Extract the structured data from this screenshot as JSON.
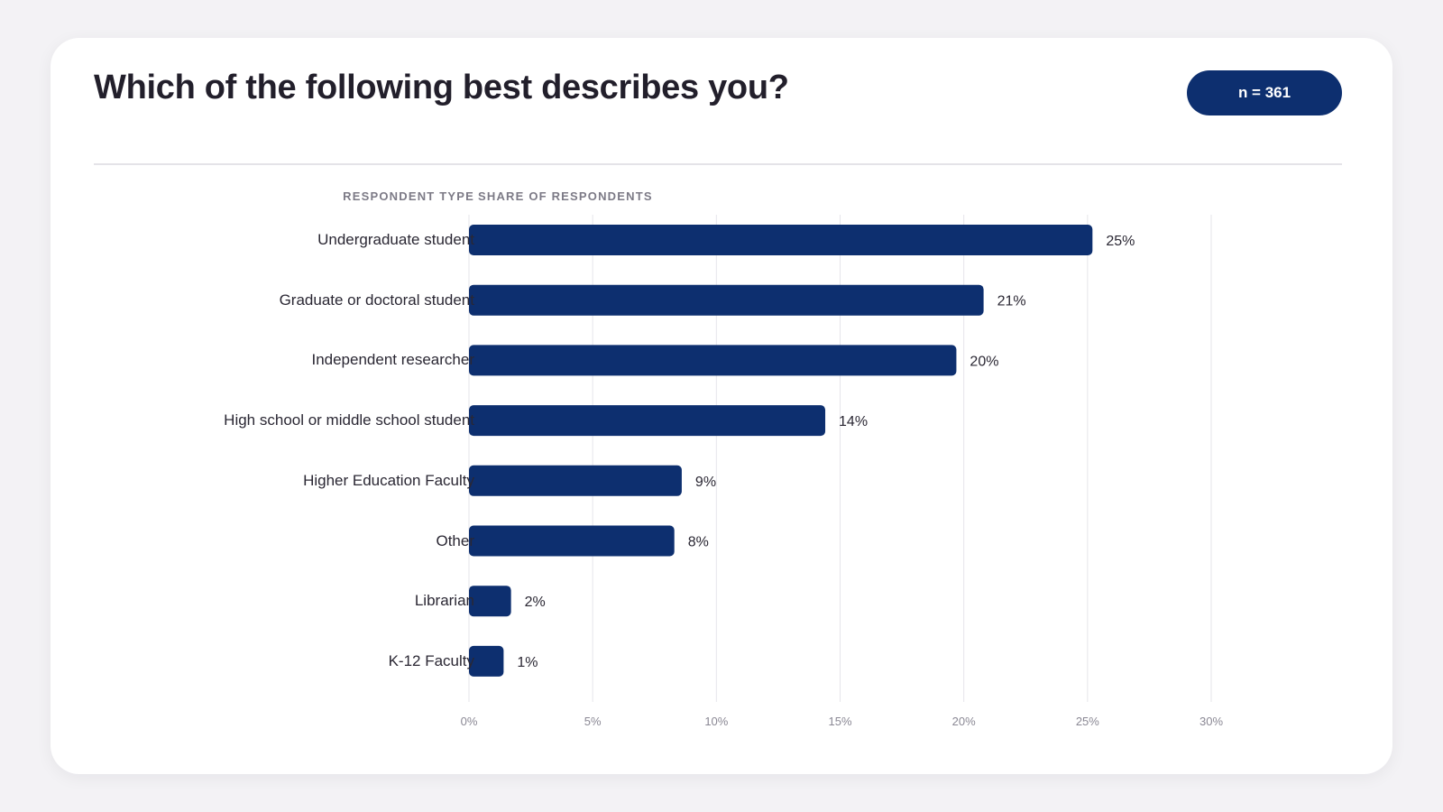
{
  "header": {
    "title": "Which of the following best describes you?",
    "sample_badge": "n = 361"
  },
  "columns": {
    "category_header": "RESPONDENT TYPE",
    "value_header": "SHARE OF RESPONDENTS"
  },
  "colors": {
    "bar": "#0d2f6f",
    "badge": "#0d2f6f",
    "grid": "#e6e5ea",
    "tick_text": "#8a8894",
    "value_text": "#2a2733"
  },
  "chart_data": {
    "type": "bar",
    "orientation": "horizontal",
    "title": "Which of the following best describes you?",
    "xlabel": "SHARE OF RESPONDENTS",
    "ylabel": "RESPONDENT TYPE",
    "categories": [
      "Undergraduate student",
      "Graduate or doctoral student",
      "Independent researcher",
      "High school or middle school student",
      "Higher Education Faculty",
      "Other",
      "Librarian",
      "K-12 Faculty"
    ],
    "values": [
      25.2,
      20.8,
      19.7,
      14.4,
      8.6,
      8.3,
      1.7,
      1.4
    ],
    "value_labels": [
      "25%",
      "21%",
      "20%",
      "14%",
      "9%",
      "8%",
      "2%",
      "1%"
    ],
    "xlim": [
      0,
      30
    ],
    "xticks": [
      0,
      5,
      10,
      15,
      20,
      25,
      30
    ],
    "xtick_labels": [
      "0%",
      "5%",
      "10%",
      "15%",
      "20%",
      "25%",
      "30%"
    ],
    "grid": true,
    "legend": "none"
  }
}
